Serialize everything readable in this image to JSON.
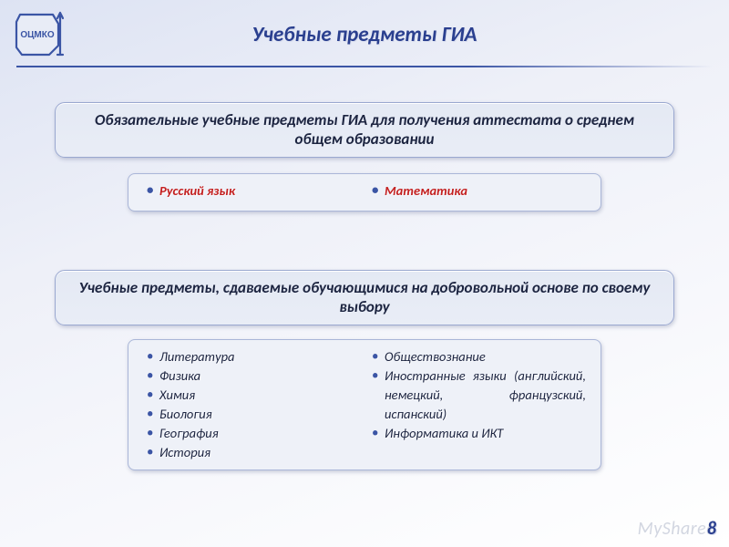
{
  "logo_text": "ОЦМКО",
  "title": "Учебные предметы ГИА",
  "panels": {
    "mandatory": "Обязательные учебные предметы ГИА для получения аттестата о среднем общем образовании",
    "optional": "Учебные предметы, сдаваемые обучающимися на добровольной основе по своему выбору"
  },
  "mandatory_subjects": {
    "left": "Русский язык",
    "right": "Математика"
  },
  "optional_subjects": {
    "left": [
      "Литература",
      "Физика",
      "Химия",
      "Биология",
      "География",
      "История"
    ],
    "right": [
      "Обществознание",
      "Иностранные языки (английский, немецкий, французский, испанский)",
      "Информатика и ИКТ"
    ]
  },
  "page_number": "8",
  "watermark": "MyShared",
  "colors": {
    "accent": "#2a3f8f",
    "red": "#c42020",
    "panel_bg": "#e6ebf5",
    "panel_border": "#9aa8d0"
  }
}
